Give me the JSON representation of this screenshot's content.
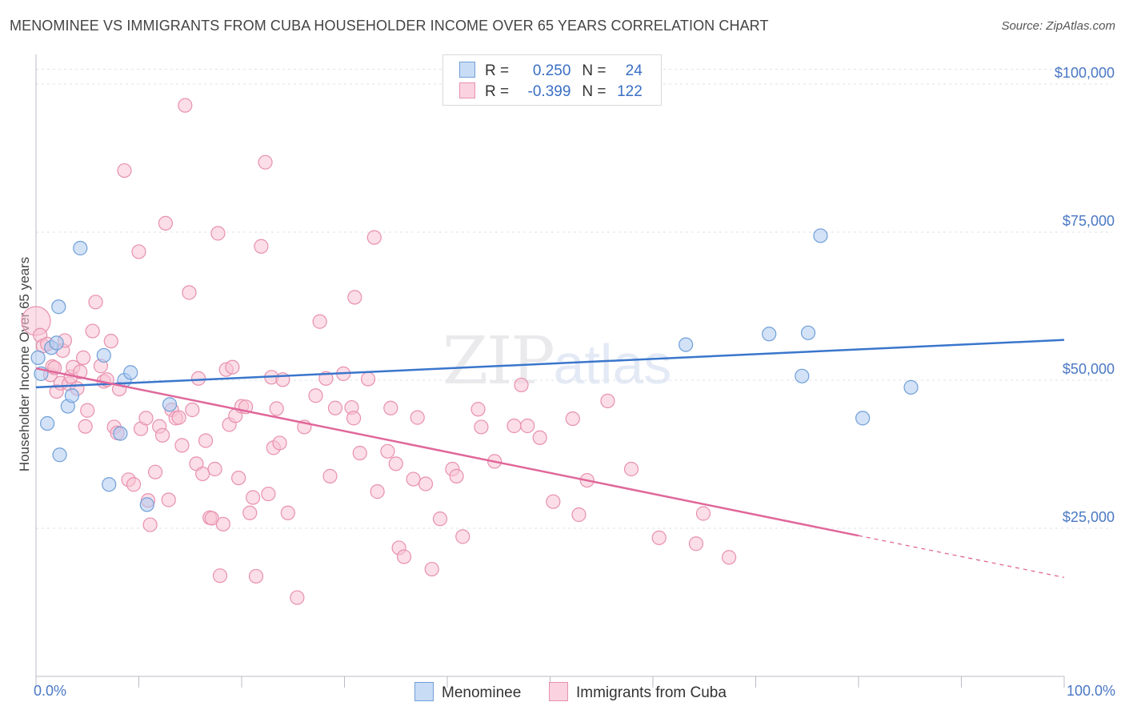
{
  "header": {
    "title": "MENOMINEE VS IMMIGRANTS FROM CUBA HOUSEHOLDER INCOME OVER 65 YEARS CORRELATION CHART",
    "source": "Source: ZipAtlas.com"
  },
  "watermark": {
    "zip": "ZIP",
    "atlas": "atlas"
  },
  "legend": {
    "series1": {
      "r_label": "R =",
      "r_value": "0.250",
      "n_label": "N =",
      "n_value": "24"
    },
    "series2": {
      "r_label": "R =",
      "r_value": "-0.399",
      "n_label": "N =",
      "n_value": "122"
    }
  },
  "bottom_legend": {
    "series1": "Menominee",
    "series2": "Immigrants from Cuba"
  },
  "colors": {
    "blue_fill": "#aecbf0",
    "blue_stroke": "#6f9fd8",
    "blue_line": "#3a76cc",
    "pink_fill": "#f8c3d4",
    "pink_stroke": "#e890ae",
    "pink_line": "#e0679a",
    "grid": "#dde2ea",
    "tick_text": "#4a78c4"
  },
  "chart_data": {
    "type": "scatter",
    "title": "MENOMINEE VS IMMIGRANTS FROM CUBA HOUSEHOLDER INCOME OVER 65 YEARS CORRELATION CHART",
    "xlabel": "",
    "ylabel": "Householder Income Over 65 years",
    "xlim": [
      0,
      100
    ],
    "ylim": [
      0,
      105000
    ],
    "x_tick_labels": [
      "0.0%",
      "100.0%"
    ],
    "y_ticks": [
      {
        "value": 25000,
        "label": "$25,000"
      },
      {
        "value": 50000,
        "label": "$50,000"
      },
      {
        "value": 75000,
        "label": "$75,000"
      },
      {
        "value": 100000,
        "label": "$100,000"
      }
    ],
    "grid": true,
    "series": [
      {
        "name": "Menominee",
        "r": 0.25,
        "n": 24,
        "trend": {
          "x0": 0,
          "y0": 48800,
          "x1": 100,
          "y1": 56800,
          "dashed_from": null
        },
        "points": [
          [
            0.2,
            53800
          ],
          [
            0.5,
            51100
          ],
          [
            1.1,
            42700
          ],
          [
            1.5,
            55500
          ],
          [
            2.0,
            56300
          ],
          [
            2.2,
            62400
          ],
          [
            2.3,
            37400
          ],
          [
            3.1,
            45600
          ],
          [
            3.5,
            47400
          ],
          [
            4.3,
            72300
          ],
          [
            6.6,
            54200
          ],
          [
            7.1,
            32400
          ],
          [
            8.2,
            41000
          ],
          [
            8.6,
            50000
          ],
          [
            9.2,
            51300
          ],
          [
            10.8,
            29000
          ],
          [
            13.0,
            45900
          ],
          [
            63.2,
            56000
          ],
          [
            71.3,
            57800
          ],
          [
            74.5,
            50700
          ],
          [
            75.1,
            58000
          ],
          [
            76.3,
            74400
          ],
          [
            80.4,
            43600
          ],
          [
            85.1,
            48800
          ]
        ]
      },
      {
        "name": "Immigrants from Cuba",
        "r": -0.399,
        "n": 122,
        "trend": {
          "x0": 0,
          "y0": 52000,
          "x1": 100,
          "y1": 16700,
          "dashed_from": 80
        },
        "points": [
          [
            0.0,
            60000
          ],
          [
            0.4,
            57600
          ],
          [
            0.7,
            55800
          ],
          [
            1.1,
            56100
          ],
          [
            1.4,
            50900
          ],
          [
            1.6,
            52300
          ],
          [
            1.8,
            52100
          ],
          [
            2.0,
            48100
          ],
          [
            2.4,
            49500
          ],
          [
            2.6,
            55000
          ],
          [
            2.8,
            56700
          ],
          [
            3.2,
            49400
          ],
          [
            3.4,
            50600
          ],
          [
            3.6,
            52200
          ],
          [
            4.0,
            48600
          ],
          [
            4.3,
            51400
          ],
          [
            4.6,
            53800
          ],
          [
            4.8,
            42200
          ],
          [
            5.0,
            44900
          ],
          [
            5.5,
            58300
          ],
          [
            5.8,
            63200
          ],
          [
            6.3,
            52400
          ],
          [
            6.6,
            49800
          ],
          [
            6.9,
            50100
          ],
          [
            7.3,
            56600
          ],
          [
            7.6,
            42100
          ],
          [
            7.9,
            41100
          ],
          [
            8.1,
            48500
          ],
          [
            8.6,
            85400
          ],
          [
            9.0,
            33200
          ],
          [
            9.5,
            32400
          ],
          [
            10.0,
            71700
          ],
          [
            10.2,
            41800
          ],
          [
            10.7,
            43600
          ],
          [
            10.9,
            29700
          ],
          [
            11.1,
            25600
          ],
          [
            11.6,
            34500
          ],
          [
            12.0,
            42200
          ],
          [
            12.3,
            40700
          ],
          [
            12.6,
            76500
          ],
          [
            12.9,
            29800
          ],
          [
            13.2,
            45000
          ],
          [
            13.6,
            43600
          ],
          [
            13.9,
            43700
          ],
          [
            14.2,
            39000
          ],
          [
            14.5,
            96400
          ],
          [
            14.9,
            64800
          ],
          [
            15.2,
            45000
          ],
          [
            15.6,
            35900
          ],
          [
            15.8,
            50300
          ],
          [
            16.2,
            34200
          ],
          [
            16.5,
            39800
          ],
          [
            16.9,
            26800
          ],
          [
            17.1,
            26700
          ],
          [
            17.4,
            35000
          ],
          [
            17.7,
            74800
          ],
          [
            17.9,
            17000
          ],
          [
            18.2,
            25700
          ],
          [
            18.5,
            51800
          ],
          [
            18.8,
            42500
          ],
          [
            19.1,
            52200
          ],
          [
            19.4,
            44000
          ],
          [
            19.7,
            33500
          ],
          [
            20.0,
            45600
          ],
          [
            20.4,
            45500
          ],
          [
            20.8,
            27600
          ],
          [
            21.1,
            30200
          ],
          [
            21.4,
            16900
          ],
          [
            21.9,
            72600
          ],
          [
            22.3,
            86800
          ],
          [
            22.6,
            30800
          ],
          [
            22.9,
            50500
          ],
          [
            23.1,
            38600
          ],
          [
            23.4,
            45200
          ],
          [
            23.7,
            39400
          ],
          [
            24.0,
            50100
          ],
          [
            24.5,
            27600
          ],
          [
            25.4,
            13300
          ],
          [
            26.1,
            42100
          ],
          [
            27.2,
            47400
          ],
          [
            27.6,
            59900
          ],
          [
            28.2,
            50300
          ],
          [
            28.6,
            33800
          ],
          [
            29.1,
            45300
          ],
          [
            29.9,
            51100
          ],
          [
            30.7,
            45400
          ],
          [
            30.9,
            43600
          ],
          [
            31.0,
            64000
          ],
          [
            31.5,
            37700
          ],
          [
            32.3,
            50200
          ],
          [
            32.9,
            74100
          ],
          [
            33.2,
            31200
          ],
          [
            34.2,
            38000
          ],
          [
            34.5,
            45300
          ],
          [
            35.0,
            35900
          ],
          [
            35.3,
            21700
          ],
          [
            35.8,
            20200
          ],
          [
            36.7,
            33300
          ],
          [
            37.1,
            43700
          ],
          [
            37.9,
            32500
          ],
          [
            38.5,
            18100
          ],
          [
            39.3,
            26600
          ],
          [
            40.5,
            35000
          ],
          [
            40.9,
            33800
          ],
          [
            41.5,
            23600
          ],
          [
            43.0,
            45100
          ],
          [
            43.3,
            42100
          ],
          [
            44.6,
            36300
          ],
          [
            46.5,
            42300
          ],
          [
            47.2,
            49200
          ],
          [
            47.8,
            42300
          ],
          [
            49.0,
            40300
          ],
          [
            50.3,
            29500
          ],
          [
            52.2,
            43500
          ],
          [
            52.8,
            27300
          ],
          [
            53.6,
            33100
          ],
          [
            55.6,
            46500
          ],
          [
            57.9,
            35000
          ],
          [
            60.6,
            23400
          ],
          [
            64.2,
            22400
          ],
          [
            64.9,
            27500
          ],
          [
            67.4,
            20100
          ]
        ]
      }
    ]
  }
}
